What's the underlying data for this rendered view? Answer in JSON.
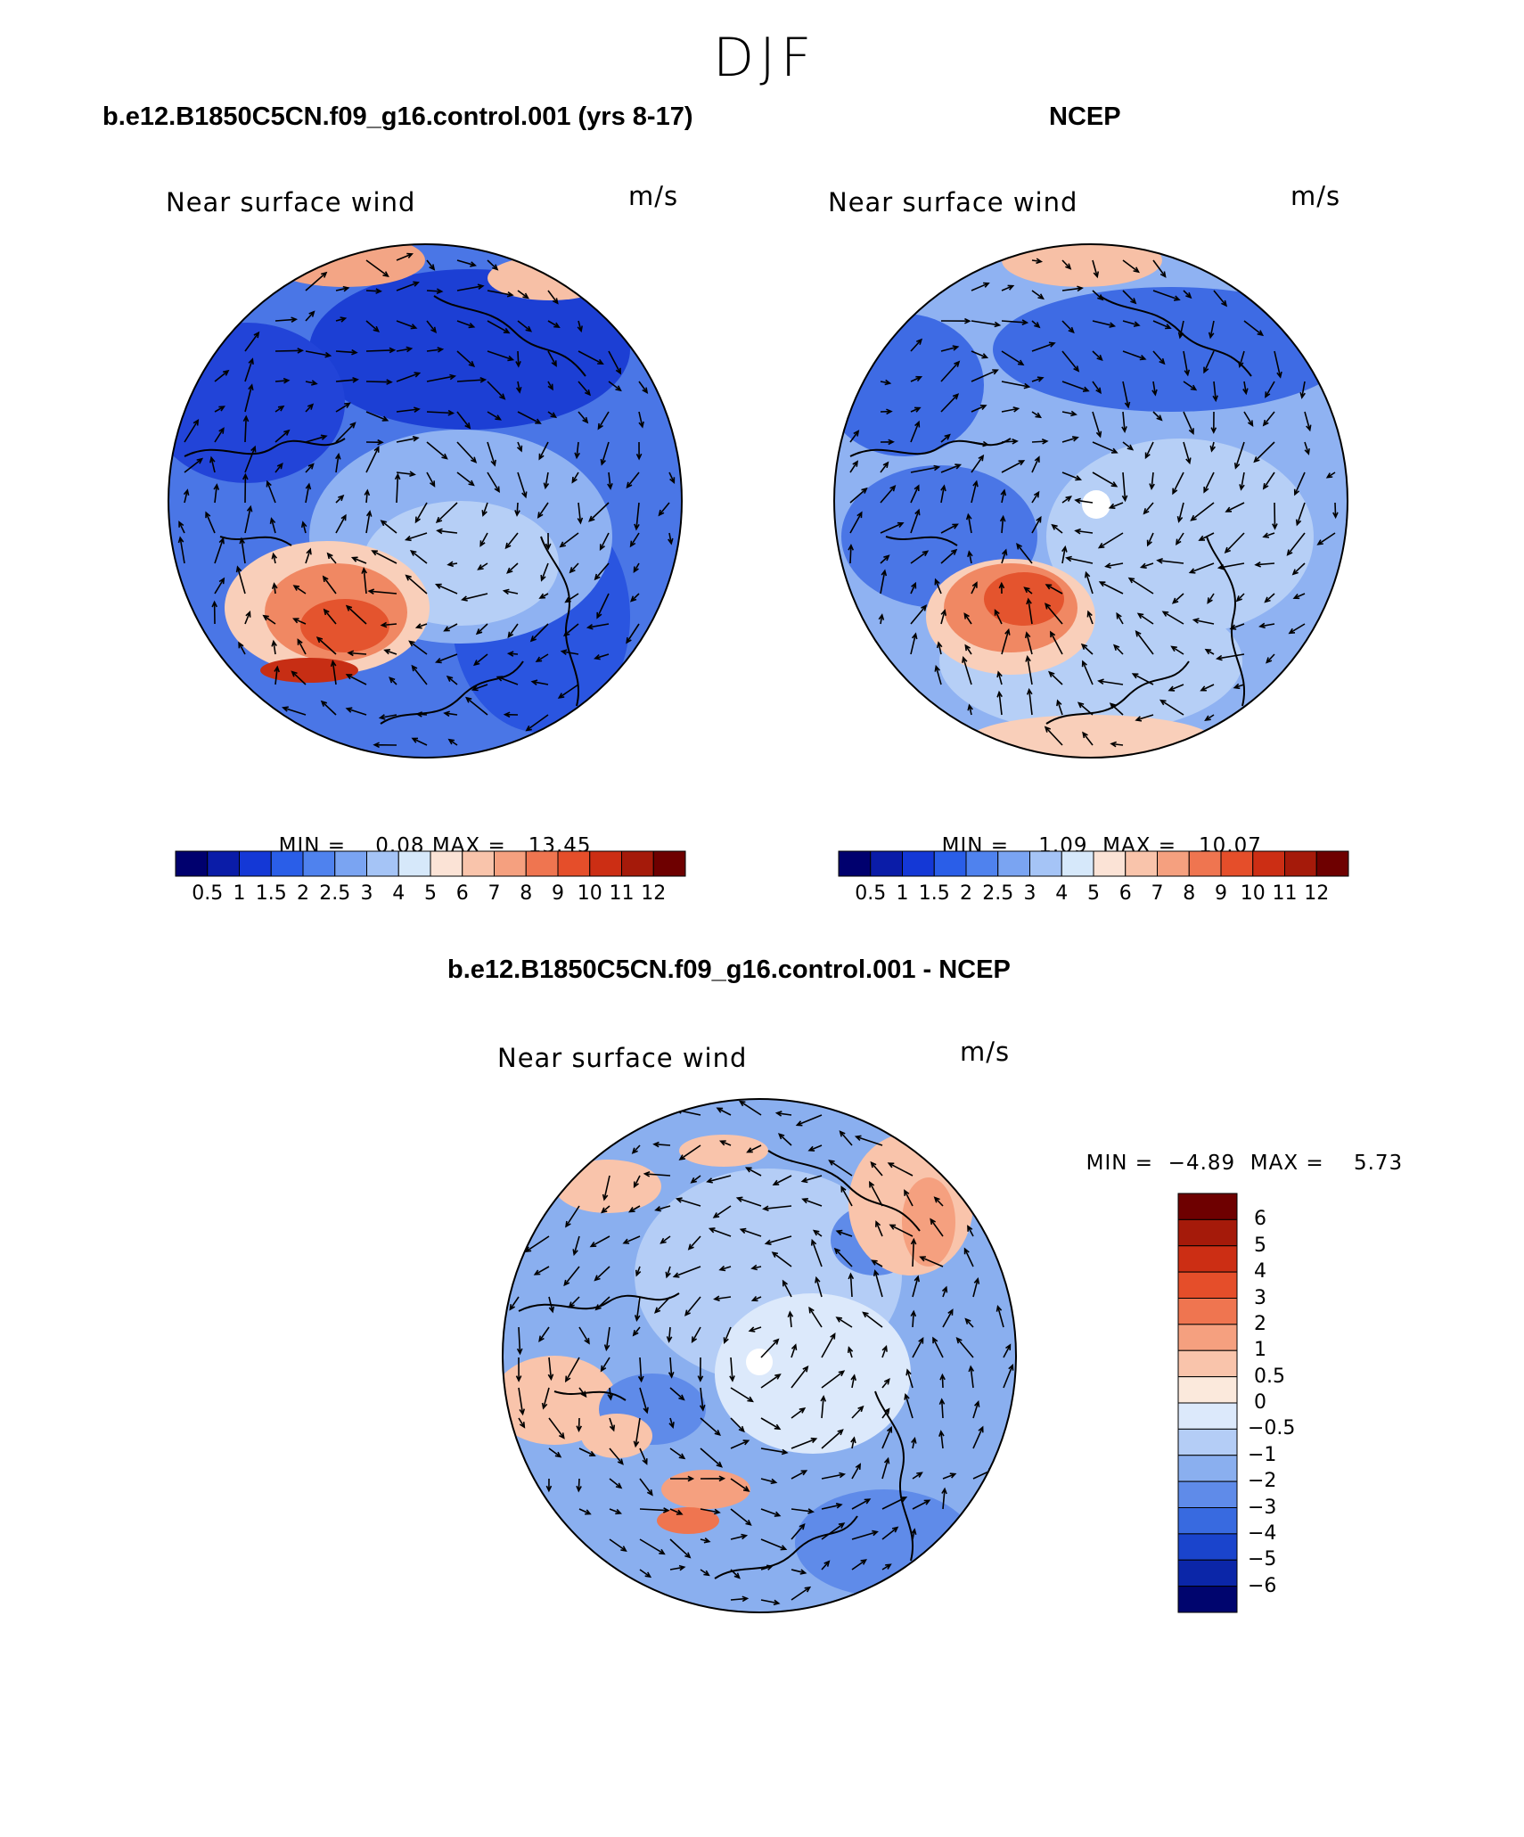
{
  "season_title": "DJF",
  "panels": [
    {
      "case_title": "b.e12.B1850C5CN.f09_g16.control.001 (yrs 8-17)",
      "field_label": "Near surface wind",
      "units": "m/s",
      "min_label": "MIN =",
      "min_value": "0.08",
      "max_label": "MAX =",
      "max_value": "13.45",
      "colorbar_ticks": [
        "0.5",
        "1",
        "1.5",
        "2",
        "2.5",
        "3",
        "4",
        "5",
        "6",
        "7",
        "8",
        "9",
        "10",
        "11",
        "12"
      ]
    },
    {
      "case_title": "NCEP",
      "field_label": "Near surface wind",
      "units": "m/s",
      "min_label": "MIN =",
      "min_value": "1.09",
      "max_label": "MAX =",
      "max_value": "10.07",
      "colorbar_ticks": [
        "0.5",
        "1",
        "1.5",
        "2",
        "2.5",
        "3",
        "4",
        "5",
        "6",
        "7",
        "8",
        "9",
        "10",
        "11",
        "12"
      ]
    },
    {
      "case_title": "b.e12.B1850C5CN.f09_g16.control.001 - NCEP",
      "field_label": "Near surface wind",
      "units": "m/s",
      "min_label": "MIN =",
      "min_value": "−4.89",
      "max_label": "MAX =",
      "max_value": "5.73",
      "colorbar_ticks": [
        "6",
        "5",
        "4",
        "3",
        "2",
        "1",
        "0.5",
        "0",
        "−0.5",
        "−1",
        "−2",
        "−3",
        "−4",
        "−5",
        "−6"
      ]
    }
  ],
  "colors": {
    "abs_scale": [
      "#00006e",
      "#0a1ca8",
      "#1438d6",
      "#2a5ee8",
      "#4f82ee",
      "#7aa4f2",
      "#a5c4f6",
      "#d6e8fa",
      "#fbe3d6",
      "#f9c4ab",
      "#f5a07f",
      "#ef7550",
      "#e54e2a",
      "#cc2e14",
      "#a51a0a",
      "#6e0000"
    ],
    "diff_scale": [
      "#6e0000",
      "#a51a0a",
      "#cc2e14",
      "#e54e2a",
      "#ef7550",
      "#f5a07f",
      "#f9c4ab",
      "#fbe9dc",
      "#dce9fb",
      "#b4cdf6",
      "#8aafef",
      "#5f8be9",
      "#386ae0",
      "#1a44cc",
      "#0b26a8",
      "#00056e"
    ]
  }
}
